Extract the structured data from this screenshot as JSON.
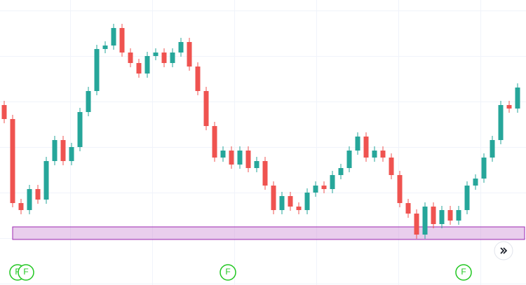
{
  "chart_data": {
    "type": "candlestick",
    "ylim": [
      0,
      407
    ],
    "up_color": "#26a69a",
    "down_color": "#ef5350",
    "open": [
      257,
      237,
      117,
      107,
      137,
      122,
      177,
      207,
      177,
      197,
      247,
      277,
      337,
      342,
      367,
      332,
      317,
      302,
      327,
      332,
      317,
      332,
      347,
      312,
      277,
      227,
      182,
      192,
      172,
      192,
      167,
      177,
      142,
      107,
      127,
      112,
      107,
      132,
      142,
      137,
      157,
      167,
      192,
      212,
      182,
      192,
      182,
      157,
      117,
      102,
      72,
      112,
      87,
      107,
      92,
      107,
      142,
      152,
      182,
      207,
      257,
      252
    ],
    "close": [
      237,
      117,
      107,
      137,
      122,
      177,
      207,
      177,
      197,
      247,
      277,
      337,
      342,
      367,
      332,
      317,
      302,
      327,
      332,
      317,
      332,
      347,
      312,
      277,
      227,
      182,
      192,
      172,
      192,
      167,
      177,
      142,
      107,
      127,
      112,
      107,
      132,
      142,
      137,
      157,
      167,
      192,
      212,
      182,
      192,
      182,
      157,
      117,
      102,
      72,
      112,
      87,
      107,
      92,
      107,
      142,
      152,
      182,
      207,
      257,
      252,
      282
    ],
    "high": [
      263,
      243,
      123,
      143,
      143,
      183,
      213,
      213,
      203,
      253,
      283,
      343,
      348,
      373,
      373,
      338,
      323,
      333,
      338,
      338,
      338,
      353,
      353,
      318,
      283,
      233,
      198,
      198,
      198,
      198,
      183,
      183,
      148,
      133,
      133,
      118,
      138,
      148,
      148,
      163,
      173,
      198,
      218,
      218,
      198,
      198,
      188,
      163,
      123,
      108,
      118,
      118,
      113,
      113,
      113,
      148,
      158,
      188,
      213,
      263,
      263,
      288
    ],
    "low": [
      231,
      111,
      101,
      101,
      116,
      116,
      171,
      171,
      171,
      191,
      241,
      271,
      331,
      336,
      326,
      311,
      296,
      296,
      321,
      311,
      311,
      326,
      306,
      271,
      221,
      176,
      176,
      166,
      166,
      161,
      161,
      136,
      101,
      101,
      106,
      101,
      101,
      126,
      131,
      131,
      151,
      161,
      186,
      176,
      176,
      176,
      151,
      111,
      96,
      66,
      66,
      81,
      81,
      86,
      86,
      101,
      136,
      146,
      176,
      201,
      246,
      246
    ],
    "zone": {
      "low": 65,
      "high": 83,
      "color": "#ce93d8"
    },
    "markers": [
      {
        "label": "F",
        "index": 2
      },
      {
        "label": "F",
        "index": 3
      },
      {
        "label": "F",
        "index": 27
      },
      {
        "label": "F",
        "index": 55
      }
    ],
    "marker_color": "#22c722"
  }
}
